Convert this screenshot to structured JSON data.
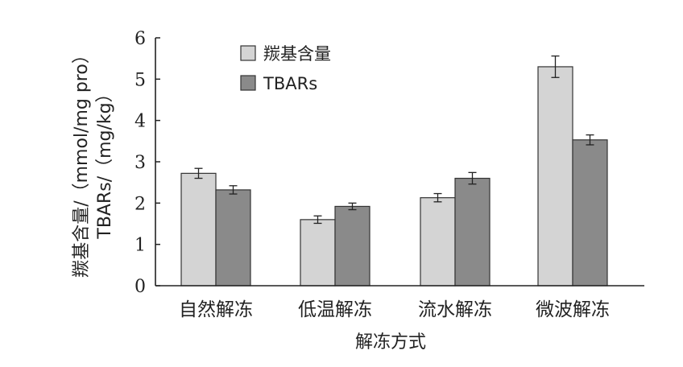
{
  "chart_data": {
    "type": "bar",
    "categories": [
      "自然解冻",
      "低温解冻",
      "流水解冻",
      "微波解冻"
    ],
    "series": [
      {
        "name": "羰基含量",
        "values": [
          2.72,
          1.6,
          2.13,
          5.3
        ],
        "errors": [
          0.12,
          0.09,
          0.1,
          0.26
        ],
        "color": "#d4d4d4"
      },
      {
        "name": "TBARs",
        "values": [
          2.32,
          1.92,
          2.6,
          3.53
        ],
        "errors": [
          0.1,
          0.08,
          0.14,
          0.12
        ],
        "color": "#8a8a8a"
      }
    ],
    "xlabel": "解冻方式",
    "ylabel_line1": "羰基含量/（mmol/mg pro）",
    "ylabel_line2": "TBARs/（mg/kg）",
    "ylim": [
      0,
      6
    ],
    "yticks": [
      0,
      1,
      2,
      3,
      4,
      5,
      6
    ],
    "legend_position": "top-left",
    "grid": false
  }
}
